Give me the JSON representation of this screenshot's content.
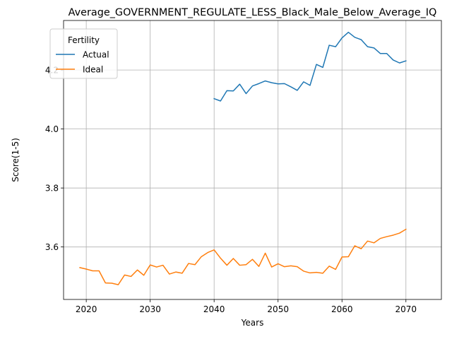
{
  "chart_data": {
    "type": "line",
    "title": "Average_GOVERNMENT_REGULATE_LESS_Black_Male_Below_Average_IQ",
    "xlabel": "Years",
    "ylabel": "Score(1-5)",
    "xlim": [
      2016.45,
      2075.55
    ],
    "ylim": [
      3.422,
      4.368
    ],
    "xticks": [
      2020,
      2030,
      2040,
      2050,
      2060,
      2070
    ],
    "xtick_labels": [
      "2020",
      "2030",
      "2040",
      "2050",
      "2060",
      "2070"
    ],
    "yticks": [
      3.6,
      3.8,
      4.0,
      4.2
    ],
    "ytick_labels": [
      "3.6",
      "3.8",
      "4.0",
      "4.2"
    ],
    "grid": true,
    "legend": {
      "title": "Fertility",
      "placement": "top-left"
    },
    "series": [
      {
        "name": "Actual",
        "color": "#1f77b4",
        "x": [
          2040,
          2041,
          2042,
          2043,
          2044,
          2045,
          2046,
          2047,
          2048,
          2049,
          2050,
          2051,
          2052,
          2053,
          2054,
          2055,
          2056,
          2057,
          2058,
          2059,
          2060,
          2061,
          2062,
          2063,
          2064,
          2065,
          2066,
          2067,
          2068,
          2069,
          2070
        ],
        "y": [
          4.103,
          4.095,
          4.13,
          4.129,
          4.152,
          4.12,
          4.146,
          4.154,
          4.163,
          4.157,
          4.153,
          4.154,
          4.143,
          4.131,
          4.16,
          4.148,
          4.219,
          4.209,
          4.284,
          4.279,
          4.309,
          4.328,
          4.311,
          4.303,
          4.279,
          4.275,
          4.256,
          4.256,
          4.234,
          4.224,
          4.231
        ]
      },
      {
        "name": "Ideal",
        "color": "#ff7f0e",
        "x": [
          2019,
          2020,
          2021,
          2022,
          2023,
          2024,
          2025,
          2026,
          2027,
          2028,
          2029,
          2030,
          2031,
          2032,
          2033,
          2034,
          2035,
          2036,
          2037,
          2038,
          2039,
          2040,
          2041,
          2042,
          2043,
          2044,
          2045,
          2046,
          2047,
          2048,
          2049,
          2050,
          2051,
          2052,
          2053,
          2054,
          2055,
          2056,
          2057,
          2058,
          2059,
          2060,
          2061,
          2062,
          2063,
          2064,
          2065,
          2066,
          2067,
          2068,
          2069,
          2070
        ],
        "y": [
          3.53,
          3.525,
          3.519,
          3.519,
          3.478,
          3.477,
          3.472,
          3.505,
          3.5,
          3.522,
          3.504,
          3.539,
          3.532,
          3.538,
          3.508,
          3.515,
          3.511,
          3.544,
          3.54,
          3.567,
          3.581,
          3.59,
          3.562,
          3.538,
          3.561,
          3.538,
          3.54,
          3.558,
          3.534,
          3.579,
          3.532,
          3.543,
          3.533,
          3.536,
          3.533,
          3.518,
          3.512,
          3.514,
          3.511,
          3.535,
          3.524,
          3.566,
          3.567,
          3.604,
          3.594,
          3.62,
          3.614,
          3.629,
          3.635,
          3.64,
          3.647,
          3.66
        ]
      }
    ]
  }
}
